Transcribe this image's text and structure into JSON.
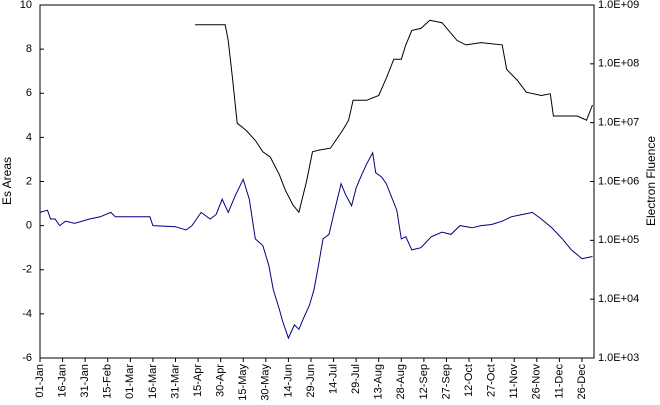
{
  "chart_data": {
    "type": "line",
    "y_label": "Es Areas",
    "y2_label": "Electron Fluence",
    "xlim": [
      0,
      368
    ],
    "xticks": [
      {
        "value": 0,
        "label": "01-Jan"
      },
      {
        "value": 15,
        "label": "16-Jan"
      },
      {
        "value": 30,
        "label": "31-Jan"
      },
      {
        "value": 45,
        "label": "15-Feb"
      },
      {
        "value": 60,
        "label": "01-Mar"
      },
      {
        "value": 75,
        "label": "16-Mar"
      },
      {
        "value": 90,
        "label": "31-Mar"
      },
      {
        "value": 105,
        "label": "15-Apr"
      },
      {
        "value": 120,
        "label": "30-Apr"
      },
      {
        "value": 135,
        "label": "15-May"
      },
      {
        "value": 150,
        "label": "30-May"
      },
      {
        "value": 165,
        "label": "14-Jun"
      },
      {
        "value": 180,
        "label": "29-Jun"
      },
      {
        "value": 195,
        "label": "14-Jul"
      },
      {
        "value": 210,
        "label": "29-Jul"
      },
      {
        "value": 225,
        "label": "13-Aug"
      },
      {
        "value": 240,
        "label": "28-Aug"
      },
      {
        "value": 255,
        "label": "12-Sep"
      },
      {
        "value": 270,
        "label": "27-Sep"
      },
      {
        "value": 285,
        "label": "12-Oct"
      },
      {
        "value": 300,
        "label": "27-Oct"
      },
      {
        "value": 315,
        "label": "11-Nov"
      },
      {
        "value": 330,
        "label": "26-Nov"
      },
      {
        "value": 345,
        "label": "11-Dec"
      },
      {
        "value": 360,
        "label": "26-Dec"
      }
    ],
    "ylim": [
      -6,
      10
    ],
    "yticks": [
      -6,
      -4,
      -2,
      0,
      2,
      4,
      6,
      8,
      10
    ],
    "y2lim": [
      1000,
      1000000000
    ],
    "y2scale": "log",
    "y2ticks": [
      {
        "value": 1000,
        "label": "1.0E+03"
      },
      {
        "value": 10000,
        "label": "1.0E+04"
      },
      {
        "value": 100000,
        "label": "1.0E+05"
      },
      {
        "value": 1000000,
        "label": "1.0E+06"
      },
      {
        "value": 10000000,
        "label": "1.0E+07"
      },
      {
        "value": 100000000,
        "label": "1.0E+08"
      },
      {
        "value": 1000000000,
        "label": "1.0E+09"
      }
    ],
    "series": [
      {
        "color": "#000080",
        "axis": "y",
        "x": [
          0,
          5,
          7,
          10,
          13,
          17,
          23,
          33,
          40,
          47,
          50,
          73,
          75,
          90,
          97,
          101,
          107,
          113,
          117,
          121,
          125,
          130,
          135,
          139,
          143,
          148,
          152,
          155,
          159,
          161,
          165,
          169,
          172,
          175,
          179,
          182,
          185,
          188,
          192,
          195,
          200,
          203,
          207,
          210,
          213,
          217,
          221,
          223,
          227,
          230,
          237,
          240,
          243,
          247,
          253,
          260,
          267,
          273,
          279,
          287,
          293,
          300,
          307,
          313,
          320,
          327,
          333,
          340,
          347,
          353,
          360,
          367
        ],
        "values": [
          0.6,
          0.7,
          0.3,
          0.3,
          0.0,
          0.2,
          0.1,
          0.3,
          0.4,
          0.6,
          0.4,
          0.4,
          0.0,
          -0.05,
          -0.2,
          0.0,
          0.6,
          0.3,
          0.5,
          1.2,
          0.6,
          1.4,
          2.1,
          1.2,
          -0.6,
          -0.9,
          -1.8,
          -2.9,
          -3.8,
          -4.3,
          -5.1,
          -4.5,
          -4.7,
          -4.2,
          -3.6,
          -2.9,
          -1.8,
          -0.6,
          -0.4,
          0.5,
          1.9,
          1.4,
          0.9,
          1.7,
          2.2,
          2.8,
          3.3,
          2.4,
          2.2,
          1.9,
          0.7,
          -0.6,
          -0.5,
          -1.1,
          -1.0,
          -0.5,
          -0.3,
          -0.4,
          0.0,
          -0.1,
          0.0,
          0.05,
          0.2,
          0.4,
          0.5,
          0.6,
          0.3,
          -0.1,
          -0.6,
          -1.1,
          -1.5,
          -1.4
        ]
      },
      {
        "color": "#000000",
        "axis": "y2",
        "x": [
          103,
          123,
          125,
          128,
          131,
          137,
          143,
          148,
          153,
          159,
          163,
          168,
          172,
          177,
          181,
          185,
          193,
          201,
          205,
          208,
          217,
          225,
          230,
          235,
          240,
          243,
          247,
          253,
          259,
          267,
          277,
          283,
          293,
          307,
          310,
          317,
          323,
          333,
          339,
          341,
          357,
          363,
          367
        ],
        "values": [
          460000000,
          460000000,
          250000000,
          53000000,
          9800000,
          7400000,
          5000000,
          3200000,
          2600000,
          1300000,
          710000,
          400000,
          300000,
          1000000,
          3200000,
          3400000,
          3700000,
          7400000,
          11000000,
          24000000,
          24000000,
          29000000,
          57000000,
          120000000,
          120000000,
          210000000,
          370000000,
          400000000,
          550000000,
          500000000,
          250000000,
          210000000,
          230000000,
          210000000,
          80000000,
          53000000,
          33000000,
          29000000,
          31000000,
          13000000,
          13000000,
          11000000,
          20000000
        ]
      }
    ]
  }
}
